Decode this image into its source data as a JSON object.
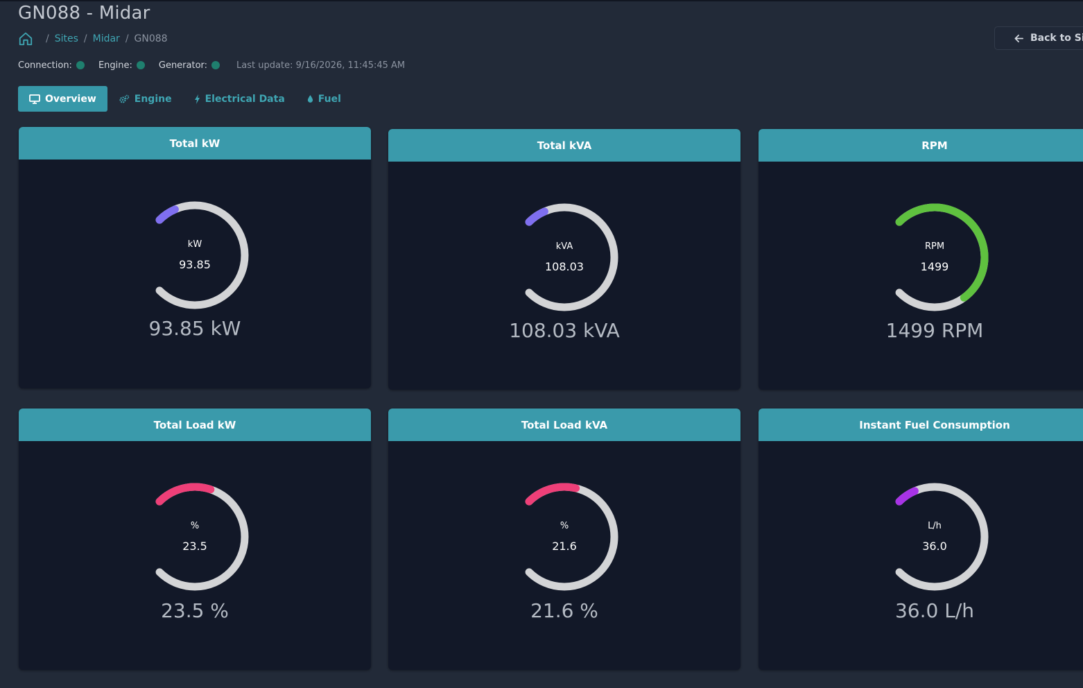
{
  "header": {
    "title": "GN088 - Midar",
    "breadcrumb": {
      "sites": "Sites",
      "site": "Midar",
      "current": "GN088"
    },
    "back_button": "Back to Site"
  },
  "status": {
    "connection_label": "Connection:",
    "engine_label": "Engine:",
    "generator_label": "Generator:",
    "last_update": "Last update: 9/16/2026, 11:45:45 AM",
    "dot_color": "#1f7f6e"
  },
  "tabs": [
    {
      "label": "Overview",
      "icon": "monitor-icon",
      "active": true
    },
    {
      "label": "Engine",
      "icon": "gears-icon",
      "active": false
    },
    {
      "label": "Electrical Data",
      "icon": "bolt-icon",
      "active": false
    },
    {
      "label": "Fuel",
      "icon": "droplet-icon",
      "active": false
    }
  ],
  "gauges": [
    {
      "title": "Total kW",
      "unit": "kW",
      "value": "93.85",
      "display": "93.85 kW",
      "fill_fraction": 0.08,
      "color": "#7f6ff0"
    },
    {
      "title": "Total kVA",
      "unit": "kVA",
      "value": "108.03",
      "display": "108.03 kVA",
      "fill_fraction": 0.08,
      "color": "#7f6ff0"
    },
    {
      "title": "RPM",
      "unit": "RPM",
      "value": "1499",
      "display": "1499 RPM",
      "fill_fraction": 0.7,
      "color": "#5fc13f"
    },
    {
      "title": "Total Load kW",
      "unit": "%",
      "value": "23.5",
      "display": "23.5 %",
      "fill_fraction": 0.235,
      "color": "#ee3f78"
    },
    {
      "title": "Total Load kVA",
      "unit": "%",
      "value": "21.6",
      "display": "21.6 %",
      "fill_fraction": 0.216,
      "color": "#ee3f78"
    },
    {
      "title": "Instant Fuel Consumption",
      "unit": "L/h",
      "value": "36.0",
      "display": "36.0 L/h",
      "fill_fraction": 0.08,
      "color": "#a833e6"
    }
  ]
}
